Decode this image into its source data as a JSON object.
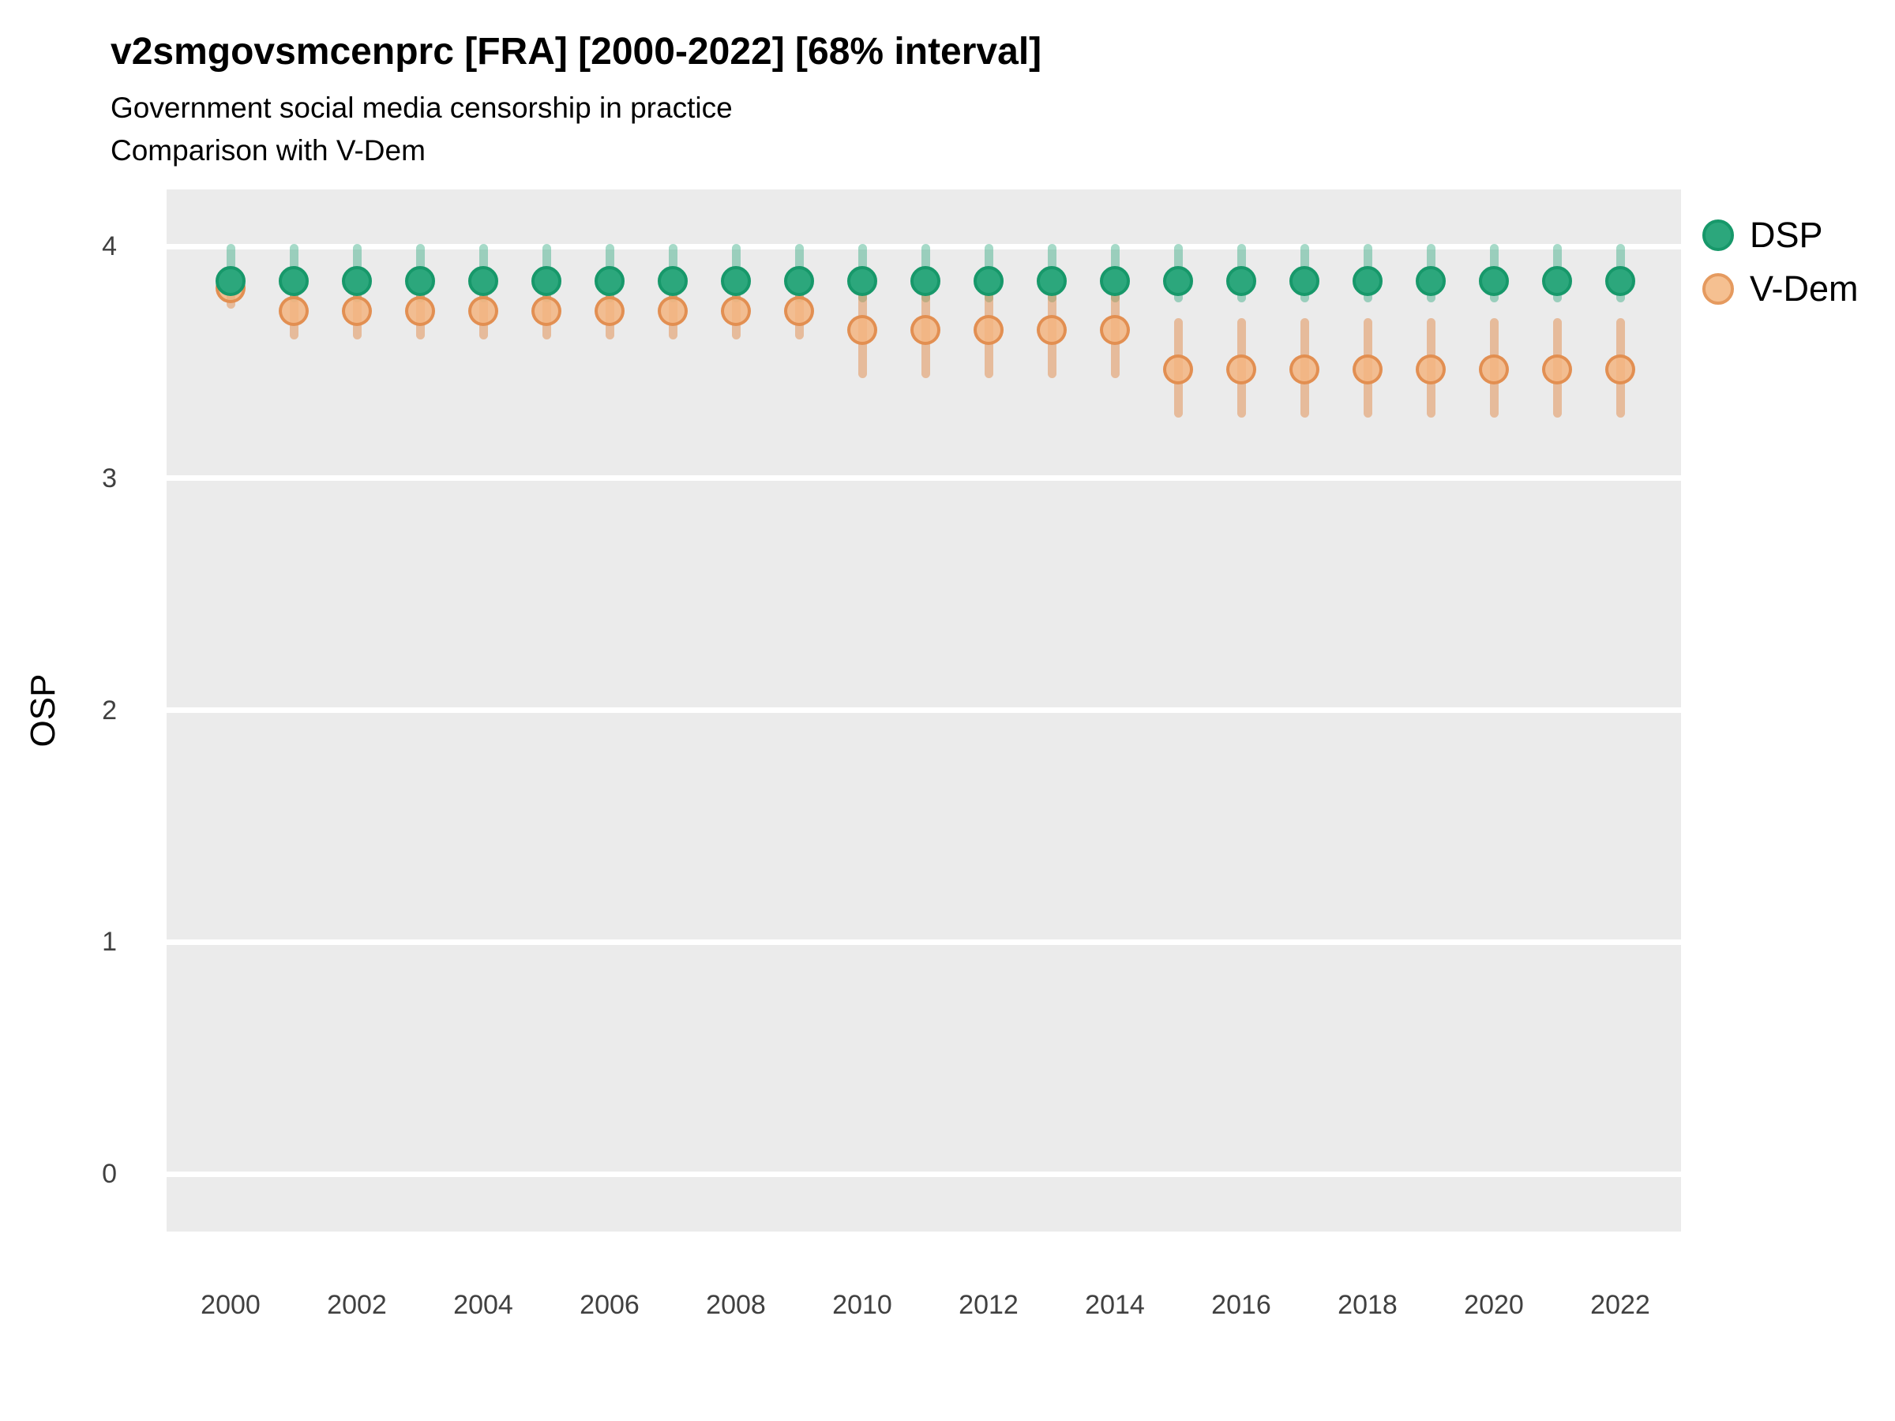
{
  "header": {
    "title": "v2smgovsmcenprc [FRA] [2000-2022] [68% interval]",
    "subtitle1": "Government social media censorship in practice",
    "subtitle2": "Comparison with V-Dem"
  },
  "colors": {
    "panel_bg": "#EBEBEB",
    "gridline": "#FFFFFF",
    "dsp_fill": "#2CA77C",
    "dsp_stroke": "#17986A",
    "dsp_bar": "rgba(42,167,123,0.42)",
    "vdem_fill": "rgba(243,181,129,0.85)",
    "vdem_stroke": "#E08C4E",
    "vdem_bar": "rgba(225,140,75,0.50)"
  },
  "chart_data": {
    "type": "scatter",
    "title": "v2smgovsmcenprc [FRA] [2000-2022] [68% interval]",
    "subtitle": "Government social media censorship in practice — Comparison with V-Dem",
    "xlabel": "",
    "ylabel": "OSP",
    "ylim": [
      -0.25,
      4.25
    ],
    "yticks": [
      0,
      1,
      2,
      3,
      4
    ],
    "xticks": [
      2000,
      2002,
      2004,
      2006,
      2008,
      2010,
      2012,
      2014,
      2016,
      2018,
      2020,
      2022
    ],
    "grid": "horizontal white gridlines on grey panel",
    "legend_position": "right",
    "interval_label": "68% interval",
    "series": [
      {
        "name": "DSP",
        "x": [
          2000,
          2001,
          2002,
          2003,
          2004,
          2005,
          2006,
          2007,
          2008,
          2009,
          2010,
          2011,
          2012,
          2013,
          2014,
          2015,
          2016,
          2017,
          2018,
          2019,
          2020,
          2021,
          2022
        ],
        "y": [
          3.85,
          3.85,
          3.85,
          3.85,
          3.85,
          3.85,
          3.85,
          3.85,
          3.85,
          3.85,
          3.85,
          3.85,
          3.85,
          3.85,
          3.85,
          3.85,
          3.85,
          3.85,
          3.85,
          3.85,
          3.85,
          3.85,
          3.85
        ],
        "lo": [
          3.76,
          3.76,
          3.76,
          3.76,
          3.76,
          3.76,
          3.76,
          3.76,
          3.76,
          3.76,
          3.76,
          3.76,
          3.76,
          3.76,
          3.76,
          3.76,
          3.76,
          3.76,
          3.76,
          3.76,
          3.76,
          3.76,
          3.76
        ],
        "hi": [
          4.01,
          4.01,
          4.01,
          4.01,
          4.01,
          4.01,
          4.01,
          4.01,
          4.01,
          4.01,
          4.01,
          4.01,
          4.01,
          4.01,
          4.01,
          4.01,
          4.01,
          4.01,
          4.01,
          4.01,
          4.01,
          4.01,
          4.01
        ]
      },
      {
        "name": "V-Dem",
        "x": [
          2000,
          2001,
          2002,
          2003,
          2004,
          2005,
          2006,
          2007,
          2008,
          2009,
          2010,
          2011,
          2012,
          2013,
          2014,
          2015,
          2016,
          2017,
          2018,
          2019,
          2020,
          2021,
          2022
        ],
        "y": [
          3.82,
          3.72,
          3.72,
          3.72,
          3.72,
          3.72,
          3.72,
          3.72,
          3.72,
          3.72,
          3.64,
          3.64,
          3.64,
          3.64,
          3.64,
          3.47,
          3.47,
          3.47,
          3.47,
          3.47,
          3.47,
          3.47,
          3.47
        ],
        "lo": [
          3.73,
          3.6,
          3.6,
          3.6,
          3.6,
          3.6,
          3.6,
          3.6,
          3.6,
          3.6,
          3.43,
          3.43,
          3.43,
          3.43,
          3.43,
          3.26,
          3.26,
          3.26,
          3.26,
          3.26,
          3.26,
          3.26,
          3.26
        ],
        "hi": [
          3.9,
          3.84,
          3.84,
          3.84,
          3.84,
          3.84,
          3.84,
          3.84,
          3.84,
          3.84,
          3.85,
          3.85,
          3.85,
          3.85,
          3.85,
          3.69,
          3.69,
          3.69,
          3.69,
          3.69,
          3.69,
          3.69,
          3.69
        ]
      }
    ]
  }
}
